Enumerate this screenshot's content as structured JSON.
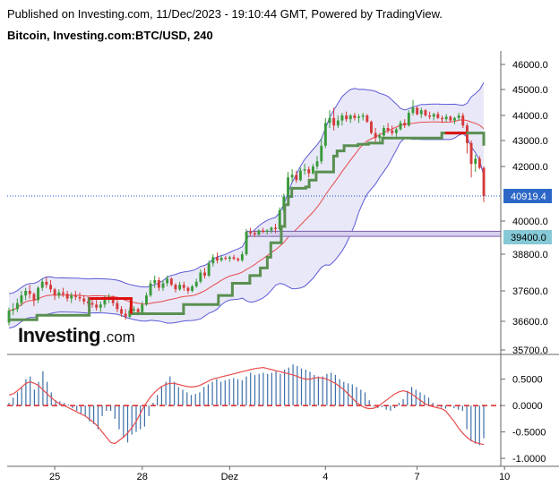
{
  "header": {
    "published": "Published on Investing.com, 11/Dec/2023 - 19:10:44 GMT, Powered by TradingView.",
    "symbol": "Bitcoin, Investing.com:BTC/USD, 240"
  },
  "logo": {
    "name": "Investing",
    "suffix": ".com"
  },
  "colors": {
    "up": "#3a9a3a",
    "down": "#d63a3a",
    "kijun": "#5a8f50",
    "kijun_down": "#dd1111",
    "band": "#5b5bd6",
    "band_fill": "#e8e8f8",
    "sma": "#e84a4a",
    "histogram": "#3d6fa8",
    "signal": "#e84a4a",
    "zero": "#dd2222",
    "price_dotted": "#2255cc",
    "label_last": "#2c67c8",
    "label_level": "#86c9d6"
  },
  "chart_data": [
    {
      "type": "candlestick",
      "title": "Bitcoin, Investing.com:BTC/USD, 240",
      "xlabel": "",
      "ylabel": "",
      "x_ticks": [
        "25",
        "28",
        "Dez",
        "4",
        "7",
        "10"
      ],
      "y_ticks": [
        "46000.0",
        "45000.0",
        "44000.0",
        "43000.0",
        "42000.0",
        "40000.0",
        "38800.0",
        "37600.0",
        "36600.0",
        "35700.0"
      ],
      "last_price_label": "40919.4",
      "level_label": "39400.0",
      "last_price": 40919.4,
      "level_price": 39400,
      "zone": [
        39430,
        39620
      ],
      "kijun_down_segments": [
        [
          23,
          35
        ],
        [
          125,
          131
        ]
      ],
      "ohlc": [
        [
          36560,
          37050,
          36470,
          36950
        ],
        [
          36950,
          37200,
          36800,
          37000
        ],
        [
          37000,
          37350,
          36900,
          37200
        ],
        [
          37200,
          37600,
          37100,
          37450
        ],
        [
          37450,
          37700,
          37300,
          37600
        ],
        [
          37600,
          37800,
          37350,
          37500
        ],
        [
          37500,
          37550,
          37100,
          37300
        ],
        [
          37300,
          37750,
          37200,
          37700
        ],
        [
          37700,
          38000,
          37600,
          37900
        ],
        [
          37900,
          38050,
          37700,
          37800
        ],
        [
          37800,
          37950,
          37550,
          37650
        ],
        [
          37650,
          37700,
          37300,
          37450
        ],
        [
          37450,
          37650,
          37350,
          37550
        ],
        [
          37550,
          37700,
          37400,
          37500
        ],
        [
          37500,
          37600,
          37250,
          37350
        ],
        [
          37350,
          37550,
          37200,
          37450
        ],
        [
          37450,
          37600,
          37300,
          37400
        ],
        [
          37400,
          37550,
          37250,
          37350
        ],
        [
          37350,
          37450,
          37150,
          37250
        ],
        [
          37250,
          37400,
          37100,
          37200
        ],
        [
          37200,
          37350,
          37050,
          37150
        ],
        [
          37150,
          37300,
          36950,
          37050
        ],
        [
          37050,
          37250,
          36900,
          37150
        ],
        [
          37150,
          37450,
          37050,
          37350
        ],
        [
          37350,
          37500,
          37200,
          37400
        ],
        [
          37400,
          37450,
          37100,
          37200
        ],
        [
          37200,
          37300,
          36900,
          37000
        ],
        [
          37000,
          37100,
          36750,
          36850
        ],
        [
          36850,
          37000,
          36650,
          36750
        ],
        [
          36750,
          37050,
          36700,
          36950
        ],
        [
          36950,
          37100,
          36850,
          37000
        ],
        [
          37000,
          37050,
          36800,
          36900
        ],
        [
          36900,
          37250,
          36850,
          37150
        ],
        [
          37150,
          37550,
          37100,
          37450
        ],
        [
          37450,
          37950,
          37400,
          37850
        ],
        [
          37850,
          38100,
          37700,
          37950
        ],
        [
          37950,
          38050,
          37600,
          37700
        ],
        [
          37700,
          37950,
          37600,
          37850
        ],
        [
          37850,
          38100,
          37750,
          38000
        ],
        [
          38000,
          38050,
          37750,
          37800
        ],
        [
          37800,
          37850,
          37550,
          37650
        ],
        [
          37650,
          37900,
          37600,
          37800
        ],
        [
          37800,
          37900,
          37600,
          37700
        ],
        [
          37700,
          37750,
          37500,
          37600
        ],
        [
          37600,
          37800,
          37550,
          37750
        ],
        [
          37750,
          38000,
          37700,
          37900
        ],
        [
          37900,
          38300,
          37850,
          38200
        ],
        [
          38200,
          38350,
          38000,
          38100
        ],
        [
          38100,
          38600,
          38050,
          38500
        ],
        [
          38500,
          38800,
          38400,
          38700
        ],
        [
          38700,
          38850,
          38500,
          38600
        ],
        [
          38600,
          38750,
          38550,
          38680
        ],
        [
          38680,
          38750,
          38600,
          38650
        ],
        [
          38650,
          38750,
          38550,
          38700
        ],
        [
          38700,
          38780,
          38600,
          38650
        ],
        [
          38650,
          38700,
          38550,
          38600
        ],
        [
          38600,
          38900,
          38550,
          38800
        ],
        [
          38800,
          39700,
          38750,
          39600
        ],
        [
          39600,
          39750,
          39450,
          39550
        ],
        [
          39550,
          39650,
          39400,
          39500
        ],
        [
          39500,
          39700,
          39450,
          39650
        ],
        [
          39650,
          39750,
          39550,
          39600
        ],
        [
          39600,
          39700,
          39500,
          39650
        ],
        [
          39650,
          39800,
          39550,
          39750
        ],
        [
          39750,
          39900,
          39550,
          39700
        ],
        [
          39700,
          40500,
          39650,
          40400
        ],
        [
          40400,
          41000,
          40300,
          40900
        ],
        [
          40900,
          41800,
          40800,
          41600
        ],
        [
          41600,
          41900,
          41400,
          41700
        ],
        [
          41700,
          41850,
          41400,
          41500
        ],
        [
          41500,
          41950,
          41450,
          41850
        ],
        [
          41850,
          42100,
          41700,
          41900
        ],
        [
          41900,
          42000,
          41600,
          41750
        ],
        [
          41750,
          42100,
          41700,
          42000
        ],
        [
          42000,
          42400,
          41900,
          42200
        ],
        [
          42200,
          43100,
          42100,
          42800
        ],
        [
          42800,
          43900,
          42700,
          43700
        ],
        [
          43700,
          44200,
          43500,
          43900
        ],
        [
          43900,
          44300,
          43400,
          43600
        ],
        [
          43600,
          44000,
          43500,
          43800
        ],
        [
          43800,
          44100,
          43600,
          44000
        ],
        [
          44000,
          44150,
          43750,
          43850
        ],
        [
          43850,
          44050,
          43700,
          44000
        ],
        [
          44000,
          44100,
          43800,
          43900
        ],
        [
          43900,
          44050,
          43700,
          43950
        ],
        [
          43950,
          44100,
          43800,
          44000
        ],
        [
          44000,
          44050,
          43700,
          43750
        ],
        [
          43750,
          43800,
          43250,
          43300
        ],
        [
          43300,
          43500,
          42900,
          43100
        ],
        [
          43100,
          43300,
          42900,
          43200
        ],
        [
          43200,
          43600,
          43100,
          43500
        ],
        [
          43500,
          43700,
          43300,
          43400
        ],
        [
          43400,
          43600,
          43200,
          43300
        ],
        [
          43300,
          43500,
          43150,
          43450
        ],
        [
          43450,
          43800,
          43400,
          43700
        ],
        [
          43700,
          43850,
          43500,
          43600
        ],
        [
          43600,
          44200,
          43550,
          44100
        ],
        [
          44100,
          44600,
          44000,
          44300
        ],
        [
          44300,
          44350,
          44000,
          44050
        ],
        [
          44050,
          44300,
          43900,
          44200
        ],
        [
          44200,
          44250,
          43950,
          44000
        ],
        [
          44000,
          44150,
          43850,
          43950
        ],
        [
          43950,
          44100,
          43800,
          44050
        ],
        [
          44050,
          44150,
          43850,
          43900
        ],
        [
          43900,
          44000,
          43700,
          43850
        ],
        [
          43850,
          44050,
          43750,
          43950
        ],
        [
          43950,
          44000,
          43750,
          43800
        ],
        [
          43800,
          43950,
          43650,
          43900
        ],
        [
          43900,
          44100,
          43800,
          44000
        ],
        [
          44000,
          44100,
          43500,
          43600
        ],
        [
          43600,
          43700,
          42500,
          42900
        ],
        [
          42900,
          43000,
          41600,
          42100
        ],
        [
          42100,
          42450,
          41800,
          42300
        ],
        [
          42300,
          42400,
          41900,
          41950
        ],
        [
          41950,
          42000,
          40700,
          40919.4
        ]
      ],
      "kijun": [
        36650,
        36650,
        36650,
        36650,
        36650,
        36650,
        36650,
        36650,
        36800,
        36800,
        36800,
        36800,
        36800,
        36800,
        36800,
        36800,
        36800,
        36800,
        36800,
        36800,
        36800,
        36800,
        36800,
        37350,
        37350,
        37350,
        37350,
        37350,
        37350,
        37350,
        37350,
        37350,
        37350,
        37350,
        37350,
        36850,
        36850,
        36850,
        36850,
        36850,
        36850,
        36850,
        36850,
        36850,
        36850,
        36850,
        36850,
        36850,
        36850,
        36850,
        37150,
        37150,
        37150,
        37150,
        37150,
        37150,
        37150,
        37150,
        37150,
        37150,
        37450,
        37450,
        37450,
        37450,
        37850,
        37850,
        37850,
        37850,
        37850,
        38100,
        38100,
        38100,
        38350,
        38350,
        38700,
        39200,
        39200,
        39200,
        39800,
        40600,
        40900,
        41200,
        41200,
        41200,
        41200,
        41250,
        41500,
        41500,
        41800,
        41800,
        41800,
        41800,
        41800,
        42400,
        42600,
        42600,
        42800,
        42800,
        42800,
        42800,
        42850,
        42850,
        42850,
        42900,
        42900,
        42900,
        42900,
        43100,
        43100,
        43100,
        43100,
        43100,
        43100,
        43100,
        43100,
        43100,
        43100,
        43100,
        43100,
        43100,
        43100,
        43100,
        43100,
        43100,
        43300,
        43300,
        43300,
        43300,
        43300,
        43300,
        43300,
        43300,
        43300,
        43300,
        43300,
        43300,
        42800
      ]
    },
    {
      "type": "bar",
      "title": "",
      "xlabel": "",
      "ylabel": "",
      "y_ticks": [
        "0.5000",
        "0.0000",
        "-0.5000",
        "-1.0000"
      ],
      "ylim": [
        -1.1,
        0.9
      ],
      "histogram": [
        0.05,
        0.15,
        0.25,
        0.35,
        0.5,
        0.55,
        0.3,
        0.45,
        0.65,
        0.45,
        0.25,
        0.1,
        0.08,
        0.05,
        0.02,
        -0.05,
        -0.1,
        -0.15,
        -0.2,
        -0.3,
        -0.35,
        -0.45,
        -0.2,
        -0.1,
        -0.1,
        -0.25,
        -0.45,
        -0.6,
        -0.7,
        -0.55,
        -0.5,
        -0.45,
        -0.4,
        -0.2,
        0.05,
        0.2,
        0.35,
        0.45,
        0.55,
        0.45,
        0.35,
        0.3,
        0.25,
        0.2,
        0.22,
        0.25,
        0.35,
        0.4,
        0.45,
        0.5,
        0.45,
        0.48,
        0.5,
        0.52,
        0.5,
        0.48,
        0.55,
        0.62,
        0.58,
        0.6,
        0.62,
        0.6,
        0.62,
        0.65,
        0.6,
        0.68,
        0.72,
        0.78,
        0.75,
        0.7,
        0.68,
        0.64,
        0.58,
        0.55,
        0.55,
        0.6,
        0.62,
        0.58,
        0.5,
        0.45,
        0.42,
        0.4,
        0.35,
        0.3,
        0.25,
        0.1,
        -0.02,
        -0.05,
        -0.03,
        -0.08,
        -0.1,
        -0.05,
        0.05,
        0.12,
        0.28,
        0.35,
        0.3,
        0.25,
        0.2,
        0.15,
        0.05,
        -0.02,
        -0.04,
        -0.06,
        -0.02,
        -0.05,
        -0.08,
        -0.1,
        -0.45,
        -0.68,
        -0.72,
        -0.75,
        -0.62
      ],
      "signal": [
        0.2,
        0.22,
        0.28,
        0.35,
        0.42,
        0.45,
        0.42,
        0.38,
        0.3,
        0.22,
        0.15,
        0.08,
        0.03,
        0,
        -0.04,
        -0.08,
        -0.12,
        -0.16,
        -0.2,
        -0.26,
        -0.32,
        -0.4,
        -0.5,
        -0.6,
        -0.7,
        -0.72,
        -0.66,
        -0.6,
        -0.52,
        -0.42,
        -0.3,
        -0.15,
        0,
        0.12,
        0.22,
        0.3,
        0.36,
        0.4,
        0.42,
        0.42,
        0.4,
        0.38,
        0.36,
        0.35,
        0.36,
        0.38,
        0.42,
        0.46,
        0.5,
        0.52,
        0.54,
        0.56,
        0.58,
        0.6,
        0.62,
        0.64,
        0.66,
        0.68,
        0.7,
        0.71,
        0.72,
        0.7,
        0.68,
        0.66,
        0.64,
        0.62,
        0.6,
        0.58,
        0.55,
        0.52,
        0.5,
        0.5,
        0.52,
        0.53,
        0.52,
        0.5,
        0.46,
        0.42,
        0.36,
        0.3,
        0.22,
        0.14,
        0.06,
        0,
        -0.04,
        -0.06,
        -0.05,
        -0.02,
        0.04,
        0.1,
        0.16,
        0.22,
        0.26,
        0.28,
        0.26,
        0.22,
        0.16,
        0.1,
        0.04,
        0,
        -0.02,
        -0.04,
        -0.06,
        -0.1,
        -0.2,
        -0.3,
        -0.42,
        -0.52,
        -0.6,
        -0.66,
        -0.7,
        -0.72,
        -0.74
      ]
    }
  ]
}
